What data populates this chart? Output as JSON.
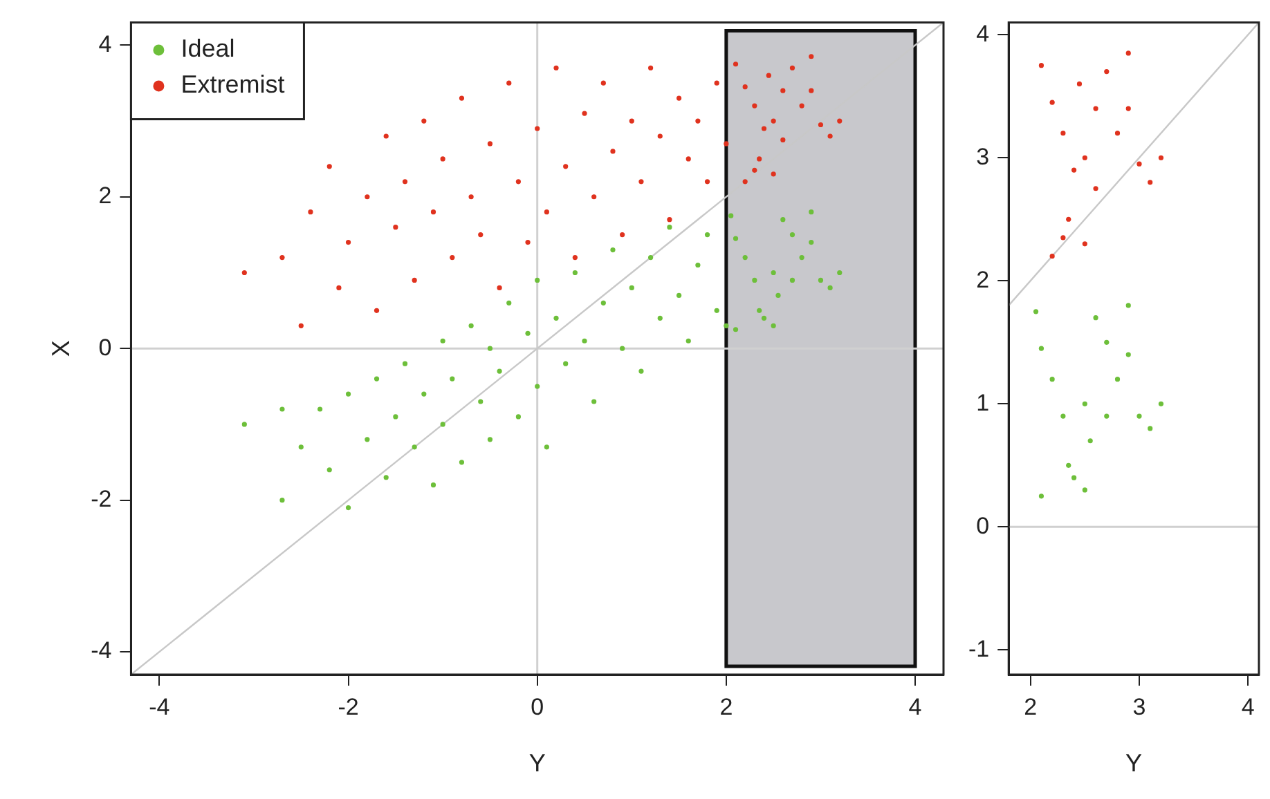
{
  "chart_data": [
    {
      "type": "scatter",
      "xlabel": "Y",
      "ylabel": "X",
      "xlim": [
        -4.3,
        4.3
      ],
      "ylim": [
        -4.3,
        4.3
      ],
      "xticks": [
        -4,
        -2,
        0,
        2,
        4
      ],
      "yticks": [
        -4,
        -2,
        0,
        2,
        4
      ],
      "grid": false,
      "legend": "top left",
      "marker": "circle",
      "ref_lines": [
        {
          "axis": "x",
          "value": 0,
          "color": "#d0d0d0"
        },
        {
          "axis": "y",
          "value": 0,
          "color": "#d0d0d0"
        }
      ],
      "bands": [
        {
          "axis": "x",
          "from": 2,
          "to": 4,
          "color": "#c8c8cc"
        }
      ],
      "series": [
        {
          "name": "Ideal",
          "color": "#6dbf3a",
          "x": [
            -3.1,
            -2.7,
            -2.7,
            -2.5,
            -2.3,
            -2.2,
            -2.0,
            -2.0,
            -1.8,
            -1.7,
            -1.6,
            -1.5,
            -1.4,
            -1.3,
            -1.2,
            -1.1,
            -1.0,
            -1.0,
            -0.9,
            -0.8,
            -0.7,
            -0.6,
            -0.5,
            -0.5,
            -0.4,
            -0.3,
            -0.2,
            -0.1,
            0.0,
            0.0,
            0.1,
            0.2,
            0.3,
            0.4,
            0.5,
            0.6,
            0.7,
            0.8,
            0.9,
            1.0,
            1.1,
            1.2,
            1.3,
            1.4,
            1.5,
            1.6,
            1.7,
            1.8,
            1.9,
            2.0,
            2.05,
            2.1,
            2.2,
            2.3,
            2.35,
            2.4,
            2.5,
            2.55,
            2.6,
            2.7,
            2.8,
            2.9,
            2.9,
            3.0,
            3.2,
            2.1,
            2.5,
            2.7,
            3.1
          ],
          "values": [
            -1.0,
            -0.8,
            -2.0,
            -1.3,
            -0.8,
            -1.6,
            -2.1,
            -0.6,
            -1.2,
            -0.4,
            -1.7,
            -0.9,
            -0.2,
            -1.3,
            -0.6,
            -1.8,
            0.1,
            -1.0,
            -0.4,
            -1.5,
            0.3,
            -0.7,
            -1.2,
            0.0,
            -0.3,
            0.6,
            -0.9,
            0.2,
            -0.5,
            0.9,
            -1.3,
            0.4,
            -0.2,
            1.0,
            0.1,
            -0.7,
            0.6,
            1.3,
            0.0,
            0.8,
            -0.3,
            1.2,
            0.4,
            1.6,
            0.7,
            0.1,
            1.1,
            1.5,
            0.5,
            0.3,
            1.75,
            1.45,
            1.2,
            0.9,
            0.5,
            0.4,
            1.0,
            0.7,
            1.7,
            1.5,
            1.2,
            1.8,
            1.4,
            0.9,
            1.0,
            0.25,
            0.3,
            0.9,
            0.8
          ]
        },
        {
          "name": "Extremist",
          "color": "#e0321e",
          "x": [
            -3.1,
            -2.7,
            -2.5,
            -2.4,
            -2.2,
            -2.1,
            -2.0,
            -1.8,
            -1.7,
            -1.6,
            -1.5,
            -1.4,
            -1.3,
            -1.2,
            -1.1,
            -1.0,
            -0.9,
            -0.8,
            -0.7,
            -0.6,
            -0.5,
            -0.4,
            -0.3,
            -0.2,
            -0.1,
            0.0,
            0.1,
            0.2,
            0.3,
            0.4,
            0.5,
            0.6,
            0.7,
            0.8,
            0.9,
            1.0,
            1.1,
            1.2,
            1.3,
            1.4,
            1.5,
            1.6,
            1.7,
            1.8,
            1.9,
            2.0,
            2.1,
            2.2,
            2.3,
            2.4,
            2.5,
            2.6,
            2.7,
            2.8,
            2.9,
            2.9,
            3.0,
            3.1,
            3.2,
            2.35,
            2.3,
            2.5,
            2.2,
            2.6,
            2.45
          ],
          "values": [
            1.0,
            1.2,
            0.3,
            1.8,
            2.4,
            0.8,
            1.4,
            2.0,
            0.5,
            2.8,
            1.6,
            2.2,
            0.9,
            3.0,
            1.8,
            2.5,
            1.2,
            3.3,
            2.0,
            1.5,
            2.7,
            0.8,
            3.5,
            2.2,
            1.4,
            2.9,
            1.8,
            3.7,
            2.4,
            1.2,
            3.1,
            2.0,
            3.5,
            2.6,
            1.5,
            3.0,
            2.2,
            3.7,
            2.8,
            1.7,
            3.3,
            2.5,
            3.0,
            2.2,
            3.5,
            2.7,
            3.75,
            3.45,
            3.2,
            2.9,
            3.0,
            3.4,
            3.7,
            3.2,
            3.85,
            3.4,
            2.95,
            2.8,
            3.0,
            2.5,
            2.35,
            2.3,
            2.2,
            2.75,
            3.6
          ]
        },
        {
          "type": "line",
          "marker": "none",
          "color": "#c8c8c8",
          "x": [
            -4.3,
            4.3
          ],
          "values": [
            -4.3,
            4.3
          ]
        }
      ]
    },
    {
      "type": "scatter",
      "xlabel": "Y",
      "xlim": [
        1.8,
        4.1
      ],
      "ylim": [
        -1.2,
        4.1
      ],
      "xticks": [
        2,
        3,
        4
      ],
      "yticks": [
        -1,
        0,
        1,
        2,
        3,
        4
      ],
      "grid": false,
      "legend": false,
      "marker": "circle",
      "ref_lines": [
        {
          "axis": "y",
          "value": 0,
          "color": "#d0d0d0"
        }
      ],
      "series": [
        {
          "color": "#6dbf3a",
          "x": [
            2.05,
            2.1,
            2.2,
            2.3,
            2.35,
            2.4,
            2.5,
            2.55,
            2.6,
            2.7,
            2.8,
            2.9,
            2.9,
            3.0,
            3.2,
            2.1,
            2.5,
            2.7,
            3.1
          ],
          "values": [
            1.75,
            1.45,
            1.2,
            0.9,
            0.5,
            0.4,
            1.0,
            0.7,
            1.7,
            1.5,
            1.2,
            1.8,
            1.4,
            0.9,
            1.0,
            0.25,
            0.3,
            0.9,
            0.8
          ]
        },
        {
          "color": "#e0321e",
          "x": [
            2.1,
            2.2,
            2.3,
            2.4,
            2.5,
            2.6,
            2.7,
            2.8,
            2.9,
            2.9,
            3.0,
            3.1,
            3.2,
            2.35,
            2.3,
            2.5,
            2.2,
            2.6,
            2.45
          ],
          "values": [
            3.75,
            3.45,
            3.2,
            2.9,
            3.0,
            3.4,
            3.7,
            3.2,
            3.85,
            3.4,
            2.95,
            2.8,
            3.0,
            2.5,
            2.35,
            2.3,
            2.2,
            2.75,
            3.6
          ]
        },
        {
          "type": "line",
          "marker": "none",
          "color": "#c8c8c8",
          "x": [
            1.8,
            4.1
          ],
          "values": [
            1.8,
            4.1
          ]
        }
      ]
    }
  ]
}
